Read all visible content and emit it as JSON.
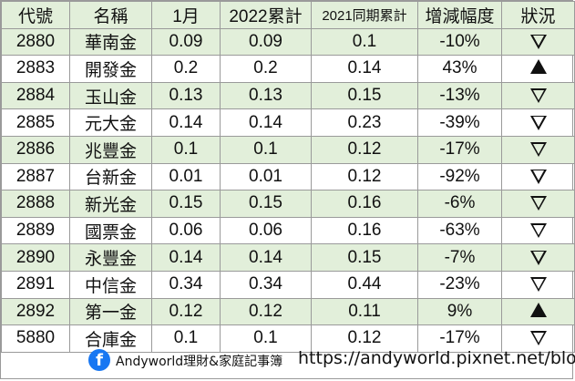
{
  "table": {
    "headers": [
      "代號",
      "名稱",
      "1月",
      "2022累計",
      "2021同期累計",
      "增減幅度",
      "狀況"
    ],
    "rows": [
      {
        "code": "2880",
        "name": "華南金",
        "jan": "0.09",
        "ytd2022": "0.09",
        "ytd2021": "0.1",
        "change": "-10%",
        "status": "down"
      },
      {
        "code": "2883",
        "name": "開發金",
        "jan": "0.2",
        "ytd2022": "0.2",
        "ytd2021": "0.14",
        "change": "43%",
        "status": "up"
      },
      {
        "code": "2884",
        "name": "玉山金",
        "jan": "0.13",
        "ytd2022": "0.13",
        "ytd2021": "0.15",
        "change": "-13%",
        "status": "down"
      },
      {
        "code": "2885",
        "name": "元大金",
        "jan": "0.14",
        "ytd2022": "0.14",
        "ytd2021": "0.23",
        "change": "-39%",
        "status": "down"
      },
      {
        "code": "2886",
        "name": "兆豐金",
        "jan": "0.1",
        "ytd2022": "0.1",
        "ytd2021": "0.12",
        "change": "-17%",
        "status": "down"
      },
      {
        "code": "2887",
        "name": "台新金",
        "jan": "0.01",
        "ytd2022": "0.01",
        "ytd2021": "0.12",
        "change": "-92%",
        "status": "down"
      },
      {
        "code": "2888",
        "name": "新光金",
        "jan": "0.15",
        "ytd2022": "0.15",
        "ytd2021": "0.16",
        "change": "-6%",
        "status": "down"
      },
      {
        "code": "2889",
        "name": "國票金",
        "jan": "0.06",
        "ytd2022": "0.06",
        "ytd2021": "0.16",
        "change": "-63%",
        "status": "down"
      },
      {
        "code": "2890",
        "name": "永豐金",
        "jan": "0.14",
        "ytd2022": "0.14",
        "ytd2021": "0.15",
        "change": "-7%",
        "status": "down"
      },
      {
        "code": "2891",
        "name": "中信金",
        "jan": "0.34",
        "ytd2022": "0.34",
        "ytd2021": "0.44",
        "change": "-23%",
        "status": "down"
      },
      {
        "code": "2892",
        "name": "第一金",
        "jan": "0.12",
        "ytd2022": "0.12",
        "ytd2021": "0.11",
        "change": "9%",
        "status": "up"
      },
      {
        "code": "5880",
        "name": "合庫金",
        "jan": "0.1",
        "ytd2022": "0.1",
        "ytd2021": "0.12",
        "change": "-17%",
        "status": "down"
      }
    ]
  },
  "footer": {
    "icon": "facebook-icon",
    "brand": "Andyworld理財&家庭記事簿",
    "url": "https://andyworld.pixnet.net/blog"
  },
  "colors": {
    "header_bg": "#e2efda",
    "stripe_bg": "#e2efda",
    "border": "#9a9a9a",
    "facebook_blue": "#1877f2"
  }
}
